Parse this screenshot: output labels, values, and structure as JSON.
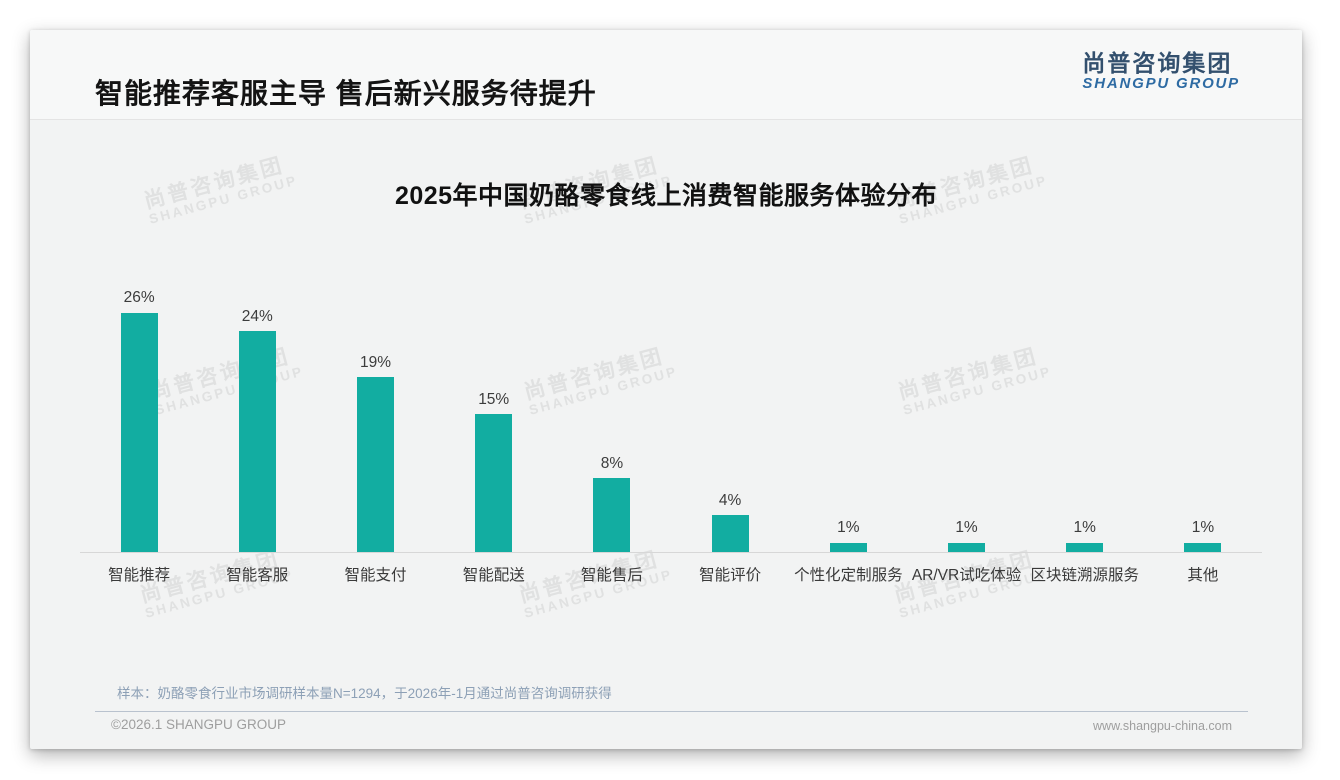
{
  "slide": {
    "header": {
      "title": "智能推荐客服主导 售后新兴服务待提升",
      "logo_cn": "尚普咨询集团",
      "logo_en": "SHANGPU GROUP"
    },
    "watermark": {
      "line1": "尚普咨询集团",
      "line2": "SHANGPU GROUP"
    },
    "footnote": "样本：奶酪零食行业市场调研样本量N=1294，于2026年-1月通过尚普咨询调研获得",
    "footer": {
      "copyright": "©2026.1 SHANGPU GROUP",
      "website": "www.shangpu-china.com"
    },
    "colors": {
      "bar": "#12ada1",
      "logo_cn": "#33506e",
      "logo_en": "#2e6ba3",
      "footnote": "#8da0b6",
      "footer_text": "#9e9e9e"
    }
  },
  "chart_data": {
    "type": "bar",
    "title": "2025年中国奶酪零食线上消费智能服务体验分布",
    "categories": [
      "智能推荐",
      "智能客服",
      "智能支付",
      "智能配送",
      "智能售后",
      "智能评价",
      "个性化定制服务",
      "AR/VR试吃体验",
      "区块链溯源服务",
      "其他"
    ],
    "values": [
      26,
      24,
      19,
      15,
      8,
      4,
      1,
      1,
      1,
      1
    ],
    "unit": "%",
    "value_labels": [
      "26%",
      "24%",
      "19%",
      "15%",
      "8%",
      "4%",
      "1%",
      "1%",
      "1%",
      "1%"
    ],
    "xlabel": "",
    "ylabel": "",
    "ylim": [
      0,
      28
    ],
    "grid": false,
    "legend": "none",
    "bar_color": "#12ada1"
  }
}
